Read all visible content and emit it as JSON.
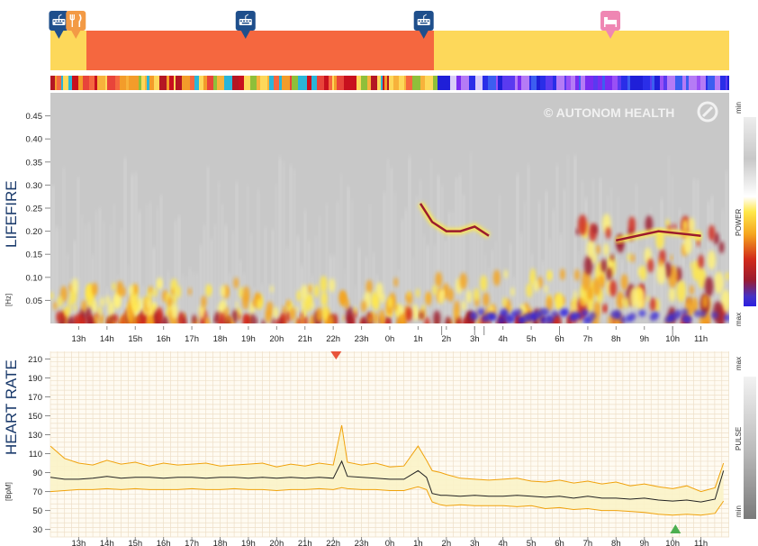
{
  "colors": {
    "activity_orange": "#f5673f",
    "activity_yellow": "#fdd85a",
    "icon_blue": "#1f4f8c",
    "icon_orange": "#f39a45",
    "icon_pink": "#ef86b3",
    "hr_band": "#f0a20c",
    "hr_fill": "#fbf3c8",
    "hr_mean": "#222222",
    "grid_minor": "#eedfc8",
    "grid_major": "#e2c9a6",
    "spectro_bg": "#c8c8c8",
    "marker_red": "#e8533a",
    "marker_green": "#4caf50"
  },
  "header": {
    "timeline_icons": [
      {
        "name": "keyboard-pin-icon",
        "time_h": 12.3
      },
      {
        "name": "meal-pin-icon",
        "time_h": 12.9
      },
      {
        "name": "keyboard-pin-icon",
        "time_h": 18.9
      },
      {
        "name": "keyboard-pin-icon",
        "time_h": 1.2
      },
      {
        "name": "bed-pin-icon",
        "time_h": 7.8
      }
    ]
  },
  "watermark": "© AUTONOM HEALTH",
  "lifefire": {
    "title": "LIFEFIRE",
    "unit": "[Hz]",
    "legend_title": "POWER",
    "legend_min": "min",
    "legend_max": "max"
  },
  "heart_rate": {
    "title": "HEART RATE",
    "unit": "[BpM]",
    "legend_title": "PULSE",
    "legend_min": "min",
    "legend_max": "max"
  },
  "chart_data": [
    {
      "type": "heatmap",
      "title": "LIFEFIRE",
      "ylabel": "[Hz]",
      "y_ticks": [
        "0.05",
        "0.10",
        "0.15",
        "0.20",
        "0.25",
        "0.30",
        "0.35",
        "0.40",
        "0.45"
      ],
      "ylim": [
        0,
        0.5
      ],
      "x_ticks": [
        "13h",
        "14h",
        "15h",
        "16h",
        "17h",
        "18h",
        "19h",
        "20h",
        "21h",
        "22h",
        "23h",
        "0h",
        "1h",
        "2h",
        "3h",
        "4h",
        "5h",
        "6h",
        "7h",
        "8h",
        "9h",
        "10h",
        "11h"
      ],
      "colorbar": {
        "label": "POWER",
        "min_label": "min",
        "max_label": "max"
      },
      "activity_segments": [
        {
          "state": "awake",
          "color": "#fdd85a",
          "from": "12h",
          "to": "13h15"
        },
        {
          "state": "active",
          "color": "#f5673f",
          "from": "13h15",
          "to": "1h50"
        },
        {
          "state": "rest",
          "color": "#fdd85a",
          "from": "1h50",
          "to": "11h50"
        }
      ],
      "peak_frequency_hz": [
        {
          "x": "1h05",
          "y": 0.26
        },
        {
          "x": "1h30",
          "y": 0.22
        },
        {
          "x": "2h00",
          "y": 0.2
        },
        {
          "x": "2h30",
          "y": 0.2
        },
        {
          "x": "3h00",
          "y": 0.21
        },
        {
          "x": "3h30",
          "y": 0.19
        },
        {
          "x": "8h00",
          "y": 0.18
        },
        {
          "x": "9h30",
          "y": 0.2
        },
        {
          "x": "11h00",
          "y": 0.19
        }
      ]
    },
    {
      "type": "line",
      "title": "HEART RATE",
      "ylabel": "[BpM]",
      "y_ticks": [
        "30",
        "50",
        "70",
        "90",
        "110",
        "130",
        "150",
        "170",
        "190",
        "210"
      ],
      "ylim": [
        22,
        218
      ],
      "x_ticks": [
        "13h",
        "14h",
        "15h",
        "16h",
        "17h",
        "18h",
        "19h",
        "20h",
        "21h",
        "22h",
        "23h",
        "0h",
        "1h",
        "2h",
        "3h",
        "4h",
        "5h",
        "6h",
        "7h",
        "8h",
        "9h",
        "10h",
        "11h"
      ],
      "colorbar": {
        "label": "PULSE",
        "min_label": "min",
        "max_label": "max"
      },
      "x_hours_from_12": [
        0.0,
        0.5,
        1.0,
        1.5,
        2.0,
        2.5,
        3.0,
        3.5,
        4.0,
        4.5,
        5.0,
        5.5,
        6.0,
        6.5,
        7.0,
        7.5,
        8.0,
        8.5,
        9.0,
        9.5,
        10.0,
        10.3,
        10.5,
        11.0,
        11.5,
        12.0,
        12.5,
        13.0,
        13.3,
        13.5,
        13.8,
        14.0,
        14.5,
        15.0,
        15.5,
        16.0,
        16.5,
        17.0,
        17.5,
        18.0,
        18.5,
        19.0,
        19.5,
        20.0,
        20.5,
        21.0,
        21.5,
        22.0,
        22.5,
        23.0,
        23.5,
        23.8
      ],
      "series": [
        {
          "role": "upper",
          "values": [
            118,
            105,
            100,
            98,
            103,
            99,
            101,
            97,
            100,
            98,
            99,
            100,
            97,
            98,
            99,
            100,
            96,
            99,
            97,
            100,
            98,
            140,
            101,
            98,
            100,
            96,
            97,
            118,
            103,
            92,
            90,
            88,
            84,
            83,
            82,
            83,
            84,
            81,
            80,
            82,
            79,
            81,
            78,
            80,
            76,
            78,
            75,
            73,
            76,
            70,
            74,
            100
          ]
        },
        {
          "role": "mean",
          "values": [
            85,
            83,
            83,
            84,
            86,
            84,
            85,
            85,
            84,
            85,
            85,
            84,
            85,
            85,
            84,
            85,
            84,
            85,
            84,
            85,
            84,
            102,
            86,
            85,
            84,
            83,
            83,
            92,
            85,
            68,
            66,
            66,
            65,
            66,
            65,
            65,
            66,
            65,
            64,
            65,
            63,
            65,
            63,
            63,
            62,
            63,
            61,
            60,
            61,
            59,
            62,
            92
          ]
        },
        {
          "role": "lower",
          "values": [
            70,
            71,
            72,
            72,
            73,
            72,
            73,
            72,
            72,
            72,
            73,
            72,
            72,
            73,
            72,
            72,
            71,
            72,
            72,
            73,
            72,
            74,
            73,
            72,
            72,
            71,
            71,
            75,
            72,
            59,
            56,
            55,
            56,
            55,
            55,
            55,
            54,
            55,
            52,
            53,
            51,
            52,
            50,
            50,
            49,
            48,
            46,
            45,
            46,
            45,
            47,
            60
          ]
        }
      ],
      "markers": [
        {
          "type": "max",
          "x": "22h",
          "color": "#e8533a"
        },
        {
          "type": "min",
          "x": "10h",
          "color": "#4caf50"
        }
      ]
    }
  ]
}
